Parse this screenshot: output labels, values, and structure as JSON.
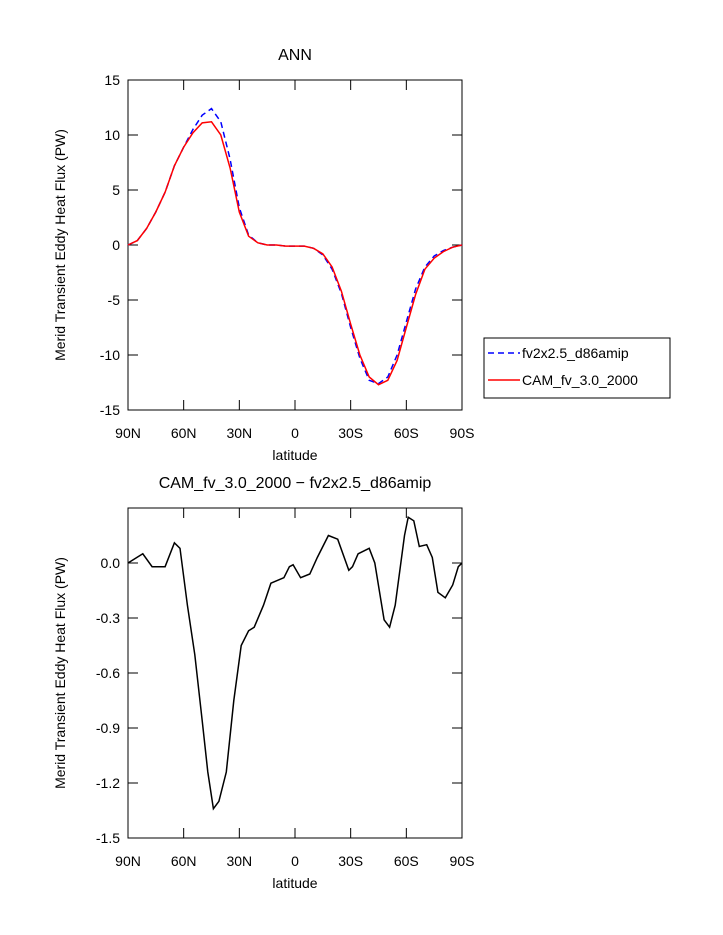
{
  "chart_data": [
    {
      "type": "line",
      "title": "ANN",
      "xlabel": "latitude",
      "ylabel": "Merid Transient Eddy Heat Flux (PW)",
      "x": [
        90,
        85,
        80,
        75,
        70,
        65,
        60,
        55,
        50,
        45,
        40,
        35,
        30,
        25,
        20,
        15,
        10,
        5,
        0,
        -5,
        -10,
        -15,
        -20,
        -25,
        -30,
        -35,
        -40,
        -45,
        -50,
        -55,
        -60,
        -65,
        -70,
        -75,
        -80,
        -85,
        -90
      ],
      "series": [
        {
          "name": "fv2x2.5_d86amip",
          "color": "#0000ff",
          "dashed": true,
          "values": [
            0,
            0.4,
            1.5,
            3.0,
            4.8,
            7.2,
            8.9,
            10.5,
            11.8,
            12.4,
            11.2,
            7.8,
            3.4,
            0.9,
            0.2,
            0,
            0,
            -0.1,
            -0.1,
            -0.1,
            -0.3,
            -0.9,
            -2.2,
            -4.4,
            -7.5,
            -10.3,
            -12.3,
            -12.6,
            -12.0,
            -10.0,
            -7.0,
            -4.0,
            -2.0,
            -1.0,
            -0.5,
            -0.2,
            0
          ]
        },
        {
          "name": "CAM_fv_3.0_2000",
          "color": "#ff0000",
          "dashed": false,
          "values": [
            0,
            0.4,
            1.5,
            3.0,
            4.8,
            7.2,
            8.9,
            10.2,
            11.1,
            11.2,
            10.0,
            7.0,
            3.0,
            0.8,
            0.2,
            0,
            0,
            -0.1,
            -0.1,
            -0.1,
            -0.3,
            -0.8,
            -2.0,
            -4.2,
            -7.2,
            -10.0,
            -12.0,
            -12.7,
            -12.3,
            -10.5,
            -7.5,
            -4.5,
            -2.2,
            -1.2,
            -0.6,
            -0.2,
            0
          ]
        }
      ],
      "xlim": [
        90,
        -90
      ],
      "xticks": [
        {
          "value": 90,
          "label": "90N"
        },
        {
          "value": 60,
          "label": "60N"
        },
        {
          "value": 30,
          "label": "30N"
        },
        0,
        {
          "value": -30,
          "label": "30S"
        },
        {
          "value": -60,
          "label": "60S"
        },
        {
          "value": -90,
          "label": "90S"
        }
      ],
      "ylim": [
        -15,
        15
      ],
      "yticks": [
        -15,
        -10,
        -5,
        0,
        5,
        10,
        15
      ],
      "legend": "right"
    },
    {
      "type": "line",
      "title": "CAM_fv_3.0_2000 − fv2x2.5_d86amip",
      "xlabel": "latitude",
      "ylabel": "Merid Transient Eddy Heat Flux (PW)",
      "x": [
        90,
        82,
        77,
        70,
        65,
        62,
        58,
        54,
        50,
        47,
        44,
        41,
        37,
        33,
        29,
        25,
        22,
        17,
        13,
        6,
        3,
        1,
        -3,
        -8,
        -12,
        -18,
        -23,
        -29,
        -31,
        -34,
        -40,
        -43,
        -48,
        -51,
        -54,
        -59,
        -61,
        -64,
        -67,
        -71,
        -74,
        -77,
        -81,
        -85,
        -88,
        -90
      ],
      "values": [
        0,
        0.05,
        -0.02,
        -0.02,
        0.11,
        0.08,
        -0.23,
        -0.5,
        -0.86,
        -1.14,
        -1.34,
        -1.3,
        -1.14,
        -0.75,
        -0.45,
        -0.37,
        -0.35,
        -0.23,
        -0.11,
        -0.08,
        -0.02,
        -0.01,
        -0.08,
        -0.06,
        0.03,
        0.15,
        0.13,
        -0.04,
        -0.02,
        0.05,
        0.08,
        0,
        -0.31,
        -0.35,
        -0.23,
        0.15,
        0.25,
        0.23,
        0.09,
        0.1,
        0.03,
        -0.16,
        -0.19,
        -0.12,
        -0.02,
        0
      ],
      "color": "#000000",
      "xlim": [
        90,
        -90
      ],
      "xticks": [
        {
          "value": 90,
          "label": "90N"
        },
        {
          "value": 60,
          "label": "60N"
        },
        {
          "value": 30,
          "label": "30N"
        },
        0,
        {
          "value": -30,
          "label": "30S"
        },
        {
          "value": -60,
          "label": "60S"
        },
        {
          "value": -90,
          "label": "90S"
        }
      ],
      "ylim": [
        -1.5,
        0.3
      ],
      "yticks": [
        -1.5,
        -1.2,
        -0.9,
        -0.6,
        -0.3,
        {
          "value": 0,
          "label": "0.0"
        }
      ]
    }
  ]
}
